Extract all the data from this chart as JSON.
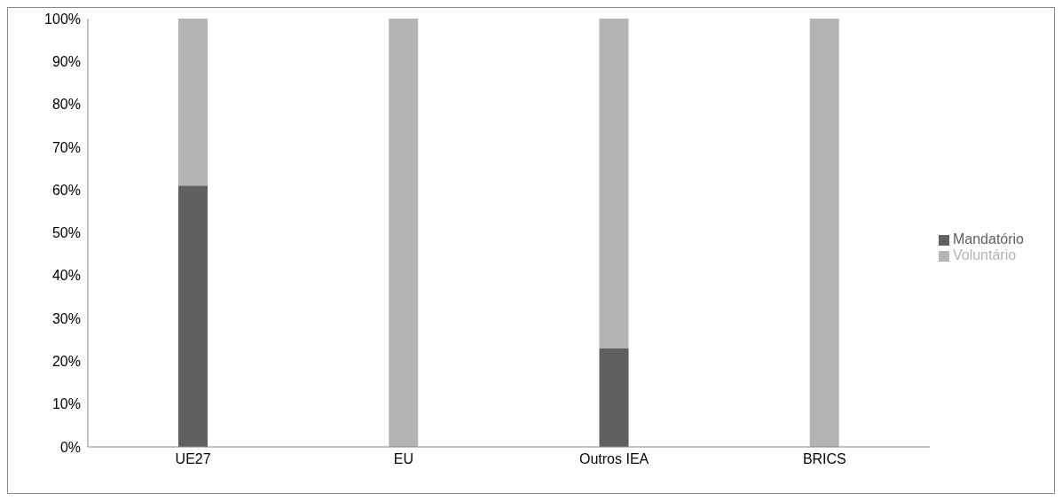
{
  "chart_data": {
    "type": "bar",
    "stacked": true,
    "categories": [
      "UE27",
      "EU",
      "Outros IEA",
      "BRICS"
    ],
    "series": [
      {
        "name": "Mandatório",
        "color": "#606060",
        "values": [
          61,
          0,
          23,
          0
        ]
      },
      {
        "name": "Voluntário",
        "color": "#b3b3b3",
        "values": [
          39,
          100,
          77,
          100
        ]
      }
    ],
    "ylim": [
      0,
      100
    ],
    "yticks": [
      {
        "value": 0,
        "label": "0%"
      },
      {
        "value": 10,
        "label": "10%"
      },
      {
        "value": 20,
        "label": "20%"
      },
      {
        "value": 30,
        "label": "30%"
      },
      {
        "value": 40,
        "label": "40%"
      },
      {
        "value": 50,
        "label": "50%"
      },
      {
        "value": 60,
        "label": "60%"
      },
      {
        "value": 70,
        "label": "70%"
      },
      {
        "value": 80,
        "label": "80%"
      },
      {
        "value": 90,
        "label": "90%"
      },
      {
        "value": 100,
        "label": "100%"
      }
    ],
    "legend": "right"
  }
}
